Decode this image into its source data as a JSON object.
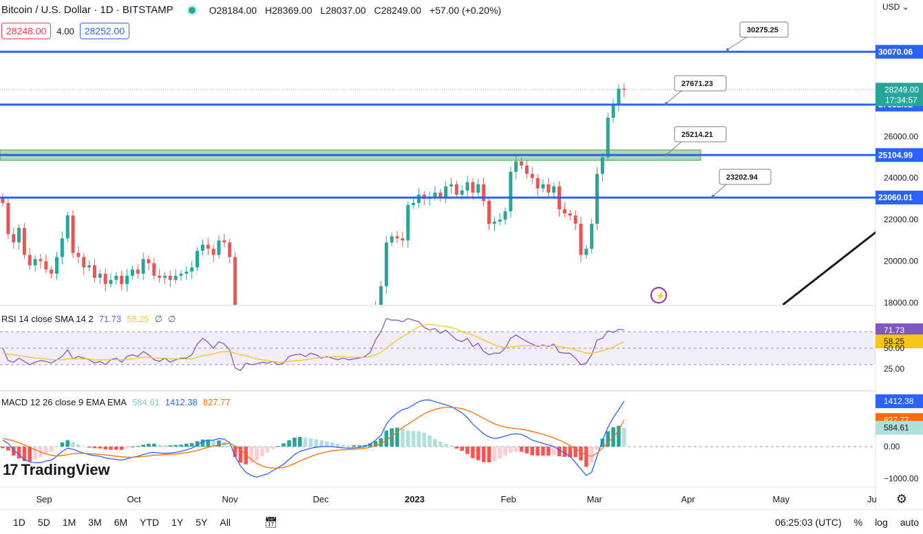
{
  "header": {
    "symbol": "Bitcoin / U.S. Dollar · 1D · BITSTAMP",
    "open_label": "O",
    "open": "28184.00",
    "high_label": "H",
    "high": "28369.00",
    "low_label": "L",
    "low": "28037.00",
    "close_label": "C",
    "close": "28249.00",
    "change": "+57.00 (+0.20%)",
    "status_color": "#26a69a"
  },
  "trade": {
    "bid": "28248.00",
    "spread": "4.00",
    "ask": "28252.00"
  },
  "currency": "USD",
  "rsi_legend": {
    "name": "RSI 14 close SMA 14 2",
    "rsi": "71.73",
    "sma": "58.25",
    "x1": "∅",
    "x2": "∅"
  },
  "macd_legend": {
    "name": "MACD 12 26 close 9 EMA EMA",
    "hist": "584.61",
    "macd": "1412.38",
    "signal": "827.77"
  },
  "logo_text": "TradingView",
  "bottom": {
    "timeframes": [
      "1D",
      "5D",
      "1M",
      "3M",
      "6M",
      "YTD",
      "1Y",
      "5Y",
      "All"
    ],
    "time": "06:25:03 (UTC)",
    "percent": "%",
    "log": "log",
    "auto": "auto"
  },
  "chart_data": [
    {
      "type": "candlestick",
      "title": "Bitcoin / U.S. Dollar · 1D · BITSTAMP",
      "x_labels": [
        "Sep",
        "Oct",
        "Nov",
        "Dec",
        "2023",
        "Feb",
        "Mar",
        "Apr",
        "May",
        "Ju"
      ],
      "y_ticks": [
        "30070.06",
        "28249.00",
        "27532.92",
        "26000.00",
        "25104.99",
        "24000.00",
        "23060.01",
        "22000.00",
        "20000.00",
        "18000.00"
      ],
      "ylim": [
        17900,
        31900
      ],
      "countdown": "17:34:57",
      "colors": {
        "up": "#26a69a",
        "down": "#ef5350",
        "level": "#2962ff",
        "zone": "#66bb6a"
      },
      "closes": [
        22800,
        21300,
        20900,
        21600,
        20300,
        19800,
        20100,
        20000,
        19600,
        19400,
        20200,
        21100,
        22200,
        20400,
        20200,
        19700,
        19800,
        19200,
        19400,
        18900,
        19100,
        19300,
        18900,
        19300,
        19600,
        19400,
        20100,
        19900,
        19300,
        19200,
        19300,
        19100,
        19300,
        19400,
        19500,
        19700,
        20500,
        20800,
        20600,
        20300,
        21000,
        20900,
        20200,
        17100,
        16300,
        16800,
        16500,
        16600,
        16800,
        16600,
        16700,
        16200,
        16400,
        16900,
        17000,
        17100,
        16900,
        17200,
        17000,
        16800,
        16900,
        16800,
        16600,
        16800,
        16500,
        16600,
        16600,
        16900,
        17100,
        17900,
        18800,
        20900,
        21200,
        21100,
        21000,
        22700,
        22800,
        23200,
        23000,
        23100,
        23300,
        23100,
        23600,
        23700,
        23200,
        23400,
        23800,
        23300,
        23700,
        22900,
        21800,
        21900,
        22000,
        22400,
        24300,
        24800,
        24600,
        24200,
        24000,
        23500,
        23700,
        23300,
        23600,
        22500,
        22300,
        22200,
        21800,
        20300,
        20600,
        21800,
        24200,
        25000,
        26900,
        27500,
        28300,
        28249
      ],
      "levels": [
        {
          "price": 30070.06,
          "label": "30070.06",
          "annotation": "30275.25"
        },
        {
          "price": 27532.92,
          "label": "27532.92",
          "annotation": "27671.23"
        },
        {
          "price": 25104.99,
          "label": "25104.99",
          "annotation": "25214.21"
        },
        {
          "price": 23060.01,
          "label": "23060.01",
          "annotation": "23202.94"
        }
      ],
      "zone": [
        24850,
        25350
      ],
      "trendline": [
        [
          145,
          17900
        ],
        [
          163,
          22200
        ]
      ]
    },
    {
      "type": "line",
      "title": "RSI 14 close SMA 14 2",
      "y_ticks": [
        "71.73",
        "58.25",
        "50.00",
        "25.00"
      ],
      "bands": [
        70,
        50,
        30
      ],
      "series": [
        {
          "name": "RSI",
          "color": "#7e57c2",
          "values": [
            50,
            35,
            33,
            38,
            34,
            30,
            33,
            35,
            34,
            32,
            36,
            40,
            48,
            37,
            40,
            38,
            36,
            32,
            34,
            30,
            36,
            38,
            33,
            40,
            42,
            40,
            46,
            42,
            36,
            34,
            38,
            33,
            36,
            38,
            38,
            42,
            55,
            62,
            57,
            50,
            58,
            55,
            48,
            26,
            23,
            32,
            30,
            31,
            33,
            32,
            34,
            30,
            32,
            40,
            42,
            43,
            40,
            44,
            42,
            38,
            40,
            38,
            36,
            38,
            36,
            37,
            38,
            40,
            45,
            60,
            70,
            86,
            84,
            84,
            82,
            86,
            84,
            82,
            75,
            72,
            74,
            68,
            72,
            66,
            60,
            58,
            62,
            52,
            56,
            46,
            42,
            44,
            44,
            50,
            62,
            66,
            62,
            58,
            55,
            52,
            54,
            52,
            55,
            45,
            44,
            44,
            38,
            30,
            32,
            42,
            60,
            62,
            71,
            69,
            73,
            72
          ]
        },
        {
          "name": "SMA",
          "color": "#f5c518",
          "values": [
            44,
            43,
            42,
            41,
            40,
            39,
            38,
            38,
            37,
            36,
            36,
            36,
            37,
            37,
            37,
            37,
            37,
            36,
            36,
            36,
            36,
            36,
            36,
            37,
            37,
            38,
            39,
            39,
            38,
            38,
            38,
            37,
            37,
            37,
            37,
            37,
            39,
            41,
            42,
            43,
            45,
            46,
            46,
            44,
            42,
            41,
            39,
            37,
            36,
            35,
            34,
            33,
            33,
            34,
            35,
            35,
            36,
            37,
            38,
            39,
            39,
            40,
            40,
            40,
            39,
            39,
            39,
            39,
            40,
            42,
            45,
            50,
            55,
            60,
            64,
            68,
            72,
            76,
            78,
            79,
            78,
            77,
            76,
            75,
            73,
            70,
            68,
            66,
            63,
            60,
            57,
            54,
            52,
            51,
            52,
            52,
            53,
            53,
            53,
            53,
            53,
            53,
            53,
            52,
            51,
            50,
            48,
            46,
            44,
            44,
            45,
            47,
            49,
            51,
            55,
            58
          ]
        }
      ]
    },
    {
      "type": "bar+line",
      "title": "MACD 12 26 close 9 EMA EMA",
      "y_ticks": [
        "1412.38",
        "827.77",
        "584.61",
        "0.00",
        "−1000.00"
      ],
      "ylim": [
        -1200,
        1650
      ],
      "colors": {
        "macd": "#2962ff",
        "signal": "#ff6d00",
        "hist_up_strong": "#26a69a",
        "hist_up_weak": "#b2dfdb",
        "hist_down_strong": "#ff5252",
        "hist_down_weak": "#ffcdd2"
      },
      "macd": [
        200,
        100,
        -100,
        -250,
        -400,
        -480,
        -500,
        -500,
        -450,
        -420,
        -300,
        -150,
        -50,
        -80,
        -150,
        -200,
        -250,
        -280,
        -300,
        -350,
        -380,
        -400,
        -420,
        -380,
        -330,
        -300,
        -250,
        -200,
        -180,
        -200,
        -210,
        -200,
        -180,
        -150,
        -100,
        -50,
        50,
        150,
        200,
        200,
        250,
        230,
        120,
        -300,
        -600,
        -800,
        -900,
        -950,
        -900,
        -850,
        -750,
        -650,
        -550,
        -400,
        -250,
        -150,
        -100,
        -50,
        -20,
        0,
        0,
        0,
        -20,
        -40,
        -50,
        -40,
        -30,
        0,
        80,
        200,
        350,
        700,
        900,
        1050,
        1150,
        1200,
        1300,
        1400,
        1450,
        1450,
        1400,
        1350,
        1300,
        1250,
        1150,
        1050,
        900,
        700,
        550,
        400,
        300,
        250,
        280,
        330,
        380,
        400,
        380,
        300,
        200,
        150,
        100,
        50,
        0,
        -100,
        -200,
        -300,
        -500,
        -700,
        -900,
        -800,
        -300,
        200,
        600,
        900,
        1150,
        1412.38
      ],
      "signal": [
        250,
        220,
        180,
        120,
        50,
        -20,
        -100,
        -170,
        -230,
        -270,
        -290,
        -280,
        -250,
        -220,
        -210,
        -210,
        -220,
        -230,
        -240,
        -260,
        -280,
        -300,
        -320,
        -330,
        -330,
        -320,
        -310,
        -290,
        -270,
        -260,
        -250,
        -240,
        -230,
        -210,
        -190,
        -160,
        -120,
        -70,
        -20,
        20,
        60,
        90,
        100,
        20,
        -100,
        -250,
        -400,
        -520,
        -600,
        -650,
        -670,
        -670,
        -650,
        -600,
        -530,
        -450,
        -380,
        -310,
        -250,
        -200,
        -160,
        -130,
        -110,
        -100,
        -90,
        -80,
        -70,
        -50,
        -20,
        30,
        90,
        200,
        330,
        460,
        590,
        700,
        810,
        920,
        1020,
        1100,
        1160,
        1200,
        1220,
        1220,
        1210,
        1180,
        1130,
        1060,
        970,
        880,
        790,
        710,
        650,
        610,
        580,
        560,
        540,
        510,
        470,
        430,
        380,
        330,
        270,
        200,
        120,
        30,
        -70,
        -170,
        -270,
        -300,
        -200,
        -50,
        120,
        300,
        500,
        827.77
      ],
      "histogram": [
        -50,
        -120,
        -280,
        -370,
        -450,
        -460,
        -400,
        -330,
        -220,
        -150,
        -10,
        130,
        200,
        140,
        60,
        10,
        -30,
        -50,
        -60,
        -90,
        -100,
        -100,
        -100,
        -50,
        0,
        20,
        60,
        90,
        90,
        60,
        40,
        40,
        50,
        60,
        90,
        110,
        170,
        220,
        220,
        180,
        190,
        140,
        20,
        -320,
        -500,
        -550,
        -500,
        -430,
        -300,
        -200,
        -80,
        20,
        100,
        200,
        280,
        300,
        280,
        260,
        230,
        200,
        160,
        130,
        90,
        60,
        40,
        40,
        40,
        50,
        100,
        170,
        260,
        500,
        570,
        590,
        560,
        500,
        490,
        480,
        430,
        350,
        240,
        150,
        80,
        30,
        -60,
        -130,
        -230,
        -360,
        -420,
        -480,
        -490,
        -460,
        -370,
        -280,
        -200,
        -160,
        -160,
        -210,
        -270,
        -280,
        -280,
        -280,
        -270,
        -300,
        -320,
        -330,
        -330,
        -430,
        -630,
        -500,
        -100,
        250,
        480,
        600,
        650,
        584.61
      ]
    }
  ]
}
